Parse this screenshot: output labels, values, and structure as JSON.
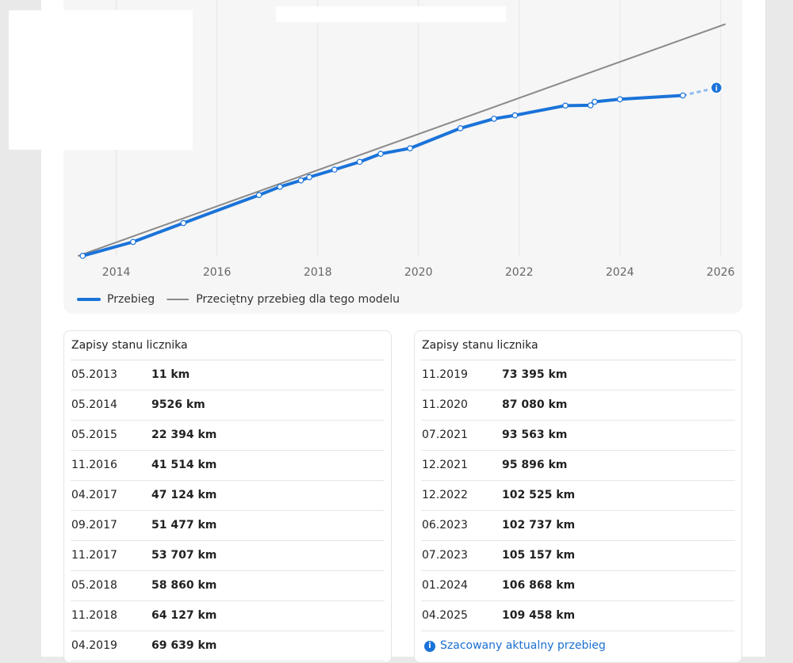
{
  "chart_data": {
    "type": "line",
    "xlim": [
      2013.25,
      2026.13
    ],
    "xticks": [
      2014,
      2016,
      2018,
      2020,
      2022,
      2024,
      2026
    ],
    "ylim": [
      0,
      160000
    ],
    "grid": true,
    "legend": "bottom-left",
    "series": [
      {
        "name": "Przebieg",
        "color": "#1a73d9",
        "x": [
          "05.2013",
          "05.2014",
          "05.2015",
          "11.2016",
          "04.2017",
          "09.2017",
          "11.2017",
          "05.2018",
          "11.2018",
          "04.2019",
          "11.2019",
          "11.2020",
          "07.2021",
          "12.2021",
          "12.2022",
          "06.2023",
          "07.2023",
          "01.2024",
          "04.2025"
        ],
        "values": [
          11,
          9526,
          22394,
          41514,
          47124,
          51477,
          53707,
          58860,
          64127,
          69639,
          73395,
          87080,
          93563,
          95896,
          102525,
          102737,
          105157,
          106868,
          109458
        ]
      },
      {
        "name": "Przeciętny przebieg dla tego modelu",
        "color": "#8a8a8a",
        "x": [
          "04.2013",
          "02.2026"
        ],
        "values": [
          0,
          158000
        ]
      }
    ],
    "estimate": {
      "x": "12.2025",
      "value": 114700,
      "color": "#8fbbef"
    }
  },
  "tables": [
    {
      "title": "Zapisy stanu licznika",
      "rows": [
        [
          "05.2013",
          "11 km"
        ],
        [
          "05.2014",
          "9526 km"
        ],
        [
          "05.2015",
          "22 394 km"
        ],
        [
          "11.2016",
          "41 514 km"
        ],
        [
          "04.2017",
          "47 124 km"
        ],
        [
          "09.2017",
          "51 477 km"
        ],
        [
          "11.2017",
          "53 707 km"
        ],
        [
          "05.2018",
          "58 860 km"
        ],
        [
          "11.2018",
          "64 127 km"
        ],
        [
          "04.2019",
          "69 639 km"
        ]
      ]
    },
    {
      "title": "Zapisy stanu licznika",
      "rows": [
        [
          "11.2019",
          "73 395 km"
        ],
        [
          "11.2020",
          "87 080 km"
        ],
        [
          "07.2021",
          "93 563 km"
        ],
        [
          "12.2021",
          "95 896 km"
        ],
        [
          "12.2022",
          "102 525 km"
        ],
        [
          "06.2023",
          "102 737 km"
        ],
        [
          "07.2023",
          "105 157 km"
        ],
        [
          "01.2024",
          "106 868 km"
        ],
        [
          "04.2025",
          "109 458 km"
        ]
      ]
    }
  ],
  "note": "Szacowany aktualny przebieg"
}
